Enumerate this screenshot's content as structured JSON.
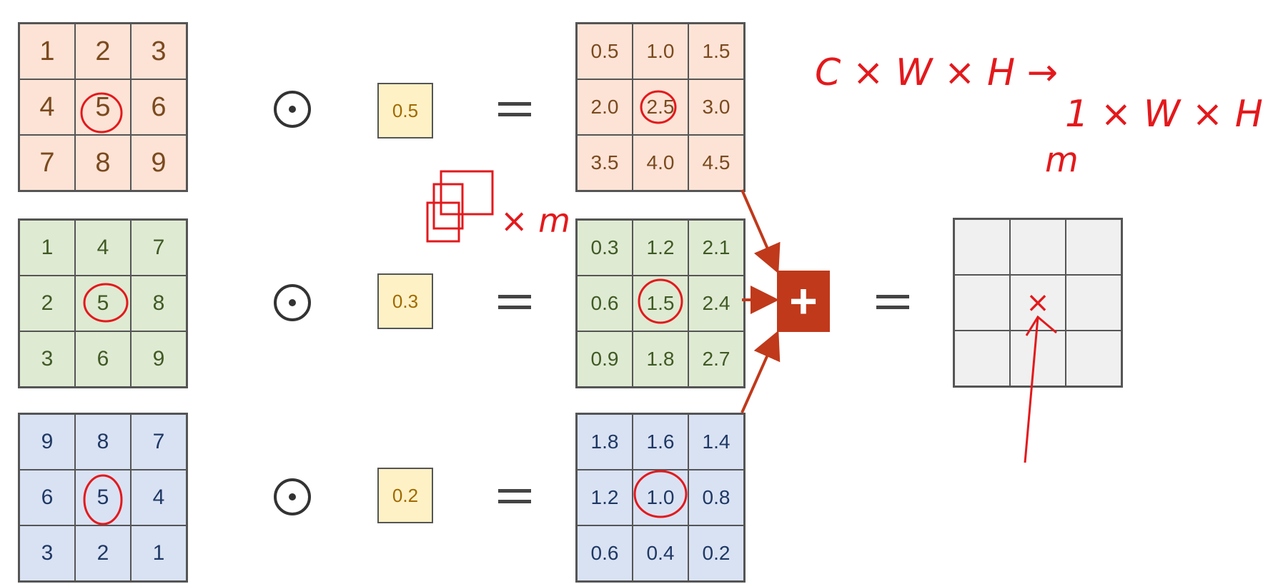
{
  "inputs": [
    {
      "cells": [
        "1",
        "2",
        "3",
        "4",
        "5",
        "6",
        "7",
        "8",
        "9"
      ]
    },
    {
      "cells": [
        "1",
        "4",
        "7",
        "2",
        "5",
        "8",
        "3",
        "6",
        "9"
      ]
    },
    {
      "cells": [
        "9",
        "8",
        "7",
        "6",
        "5",
        "4",
        "3",
        "2",
        "1"
      ]
    }
  ],
  "weights": [
    "0.5",
    "0.3",
    "0.2"
  ],
  "products": [
    {
      "cells": [
        "0.5",
        "1.0",
        "1.5",
        "2.0",
        "2.5",
        "3.0",
        "3.5",
        "4.0",
        "4.5"
      ]
    },
    {
      "cells": [
        "0.3",
        "1.2",
        "2.1",
        "0.6",
        "1.5",
        "2.4",
        "0.9",
        "1.8",
        "2.7"
      ]
    },
    {
      "cells": [
        "1.8",
        "1.6",
        "1.4",
        "1.2",
        "1.0",
        "0.8",
        "0.6",
        "0.4",
        "0.2"
      ]
    }
  ],
  "plus_symbol": "+",
  "result_marker": "×",
  "annotations": {
    "shape_in": "C × W × H →",
    "shape_out": "1 × W × H",
    "m_label": "m",
    "times_m": "× m"
  },
  "colors": {
    "row0_bg": "#fde3d6",
    "row1_bg": "#dfead3",
    "row2_bg": "#d9e2f3",
    "result_bg": "#f0f0f0",
    "weight_bg": "#fff1c6",
    "plus_bg": "#c0391b",
    "ink": "#e3191c"
  }
}
